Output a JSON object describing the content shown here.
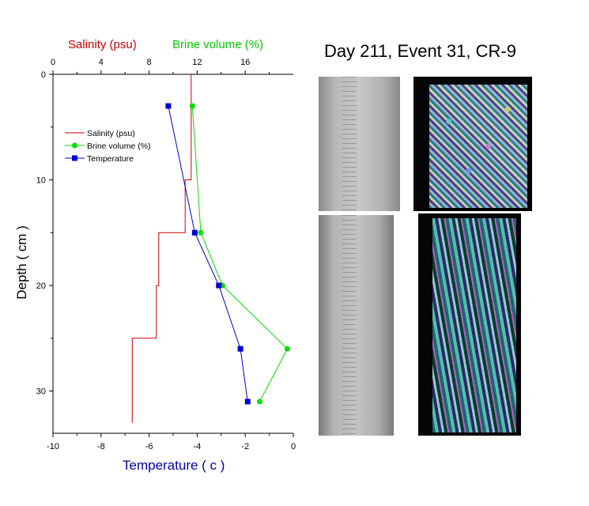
{
  "titles": {
    "salinity_axis": "Salinity (psu)",
    "brine_axis": "Brine volume (%)",
    "figure_title": "Day 211, Event 31, CR-9"
  },
  "axes": {
    "x_bottom_label": "Temperature ( c )",
    "y_label": "Depth ( cm )"
  },
  "colors": {
    "salinity": "#cc0000",
    "brine": "#00dd00",
    "temperature": "#0000cc"
  },
  "chart_data": {
    "type": "line",
    "title": "",
    "y_axis": {
      "label": "Depth ( cm )",
      "range": [
        34,
        0
      ],
      "ticks": [
        0,
        10,
        20,
        30
      ]
    },
    "x_bottom": {
      "label": "Temperature ( c )",
      "range": [
        -10,
        0
      ],
      "ticks": [
        -10,
        -8,
        -6,
        -4,
        -2,
        0
      ]
    },
    "x_top": {
      "label": "Salinity (psu) / Brine volume (%)",
      "range": [
        0,
        20
      ],
      "ticks": [
        0,
        4,
        8,
        12,
        16
      ]
    },
    "legend": {
      "position": "left",
      "entries": [
        "Salinity (psu)",
        "Brine volume (%)",
        "Temperature"
      ]
    },
    "series": [
      {
        "name": "Salinity (psu)",
        "axis": "top",
        "style": "step",
        "marker": "none",
        "points": [
          [
            11.5,
            0
          ],
          [
            11.5,
            10
          ],
          [
            11.0,
            10
          ],
          [
            11.0,
            15
          ],
          [
            8.8,
            15
          ],
          [
            8.8,
            20
          ],
          [
            8.6,
            20
          ],
          [
            8.6,
            25
          ],
          [
            6.6,
            25
          ],
          [
            6.6,
            33
          ]
        ]
      },
      {
        "name": "Brine volume (%)",
        "axis": "top",
        "style": "line",
        "marker": "circle",
        "points": [
          [
            11.6,
            3
          ],
          [
            12.3,
            15
          ],
          [
            14.1,
            20
          ],
          [
            19.5,
            26
          ],
          [
            17.2,
            31
          ]
        ]
      },
      {
        "name": "Temperature",
        "axis": "bottom",
        "style": "line",
        "marker": "square",
        "points": [
          [
            -5.2,
            3
          ],
          [
            -4.1,
            15
          ],
          [
            -3.1,
            20
          ],
          [
            -2.2,
            26
          ],
          [
            -1.9,
            31
          ]
        ]
      }
    ]
  },
  "images": [
    {
      "name": "core-photo-top",
      "kind": "gray-core"
    },
    {
      "name": "thin-section-top",
      "kind": "polarized"
    },
    {
      "name": "core-photo-bottom",
      "kind": "gray-core"
    },
    {
      "name": "thin-section-bottom",
      "kind": "polarized"
    }
  ]
}
